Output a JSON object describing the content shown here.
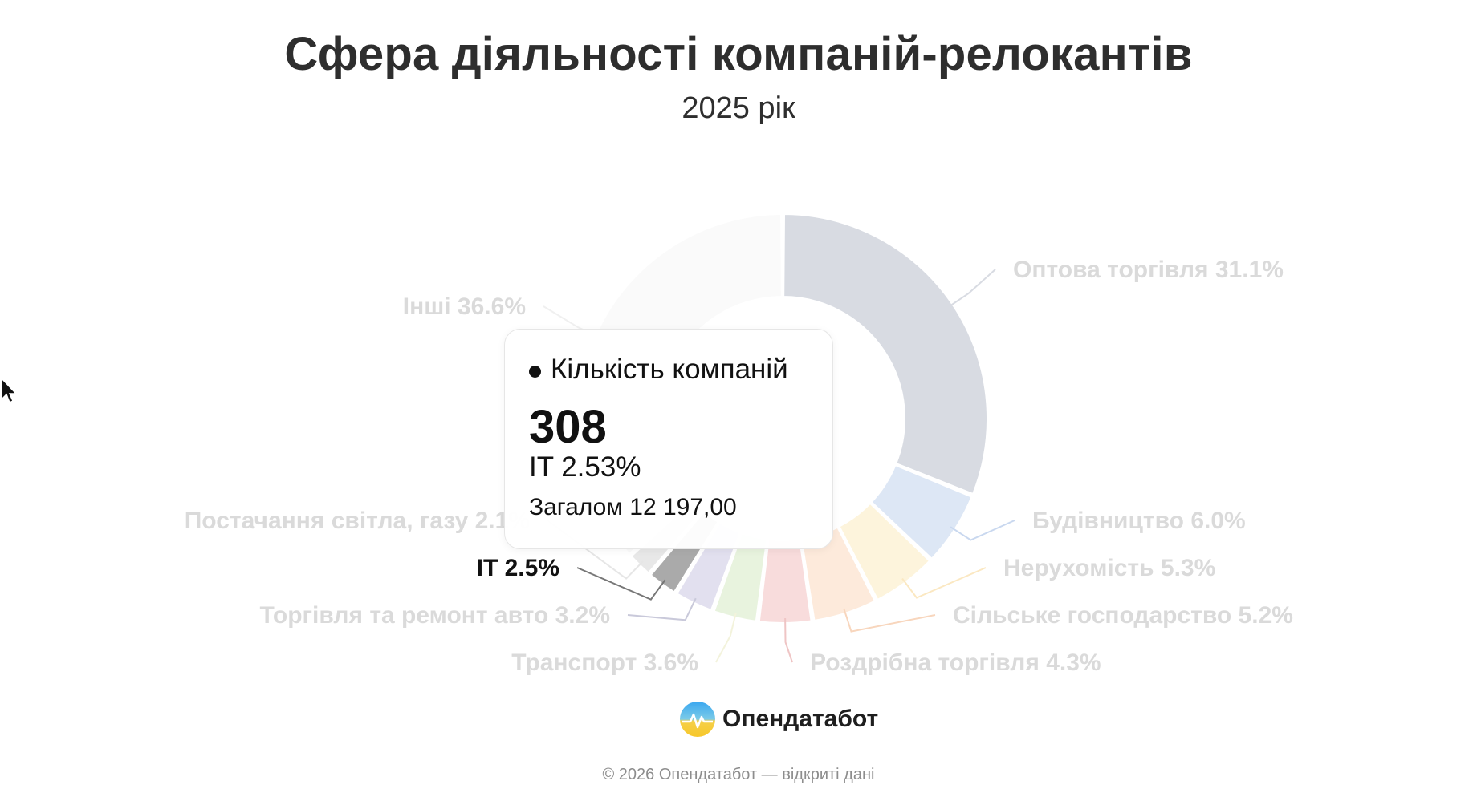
{
  "header": {
    "title": "Сфера діяльності компаній-релокантів",
    "subtitle": "2025 рік"
  },
  "chart_data": {
    "type": "pie",
    "donut": true,
    "highlighted": "IT",
    "series_name": "Кількість компаній",
    "slices": [
      {
        "label": "Оптова торгівля",
        "percent": 31.1,
        "color": "#d8dbe2"
      },
      {
        "label": "Будівництво",
        "percent": 6.0,
        "color": "#dde7f5"
      },
      {
        "label": "Нерухомість",
        "percent": 5.3,
        "color": "#fdf4dc"
      },
      {
        "label": "Сільське господарство",
        "percent": 5.2,
        "color": "#fdeadb"
      },
      {
        "label": "Роздрібна торгівля",
        "percent": 4.3,
        "color": "#f8dcdc"
      },
      {
        "label": "Транспорт",
        "percent": 3.6,
        "color": "#e8f3de"
      },
      {
        "label": "Торгівля та ремонт авто",
        "percent": 3.2,
        "color": "#e2e0ef"
      },
      {
        "label": "IT",
        "percent": 2.5,
        "color": "#aaaaaa"
      },
      {
        "label": "Постачання світла, газу",
        "percent": 2.1,
        "color": "#e8e8e8"
      },
      {
        "label": "Інші",
        "percent": 36.6,
        "color": "#fafafa"
      }
    ],
    "label_texts": [
      "Оптова торгівля 31.1%",
      "Будівництво 6.0%",
      "Нерухомість 5.3%",
      "Сільське господарство 5.2%",
      "Роздрібна торгівля 4.3%",
      "Транспорт 3.6%",
      "Торгівля та ремонт авто 3.2%",
      "IT 2.5%",
      "Постачання світла, газу 2.1%",
      "Інші 36.6%"
    ],
    "leader_colors": [
      "#d8dbe2",
      "#c9d8ef",
      "#fbe8c2",
      "#f8d6bd",
      "#efc5c5",
      "#f3f3dc",
      "#c9c9da",
      "#777777",
      "#e6e6e6",
      "#f0f0f0"
    ]
  },
  "tooltip": {
    "series": "Кількість компаній",
    "value": "308",
    "category": "IT 2.53%",
    "total": "Загалом 12 197,00"
  },
  "logo": {
    "text": "Опендатабот",
    "icon": "opendatabot-logo-icon"
  },
  "footer": {
    "text": "© 2026 Опендатабот — відкриті дані"
  }
}
